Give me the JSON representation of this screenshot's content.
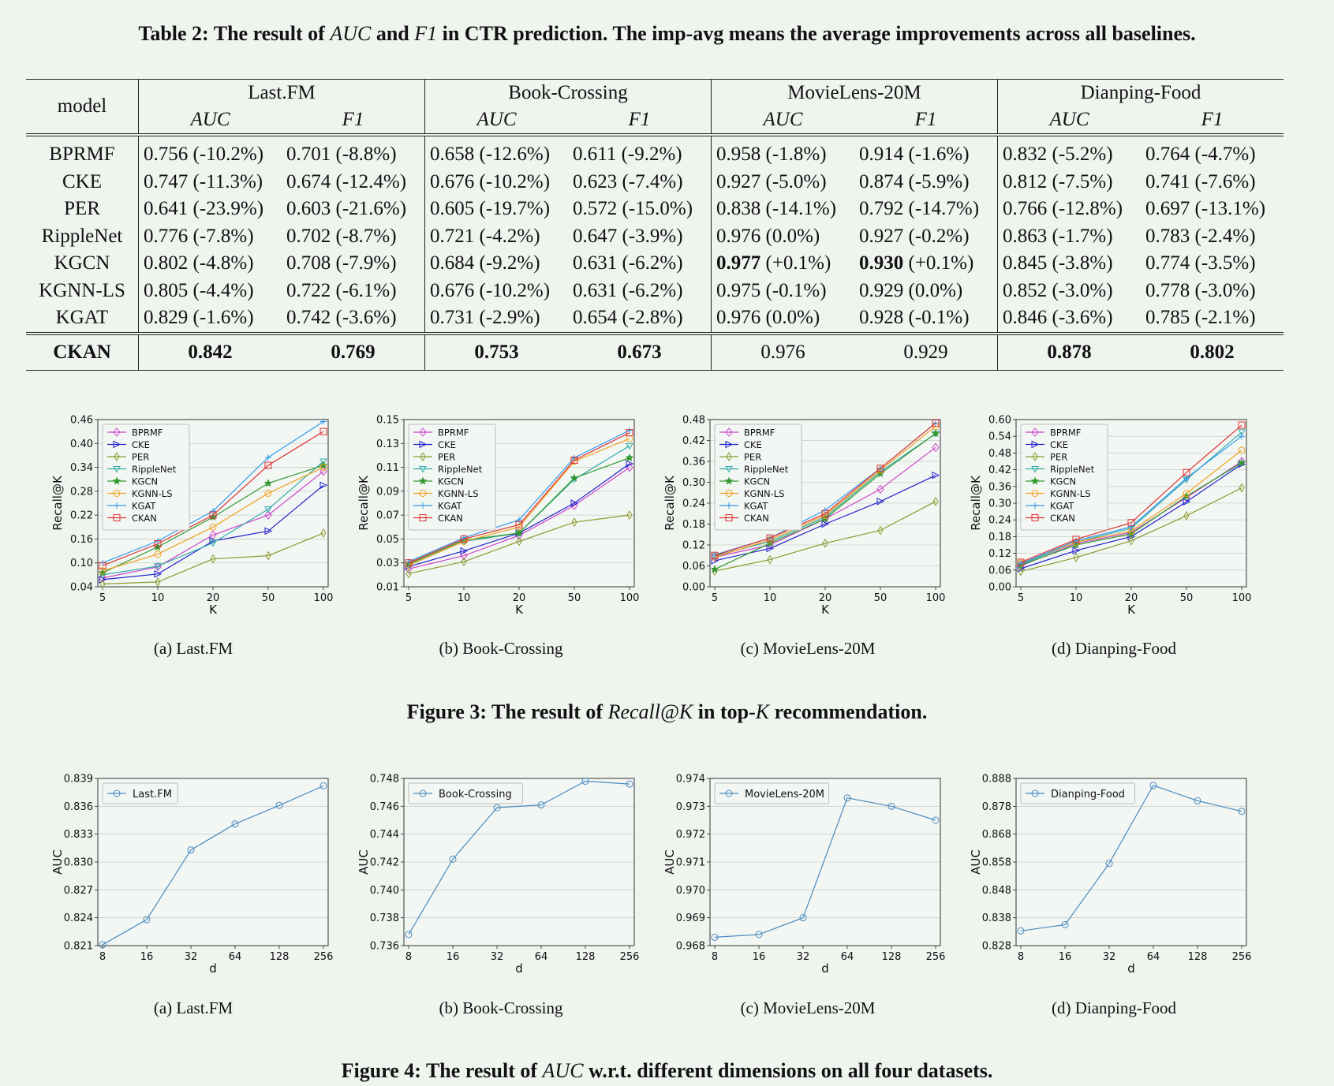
{
  "table2": {
    "caption_label": "Table 2:",
    "caption_p1": " The result of ",
    "caption_auc": "AUC",
    "caption_p2": " and ",
    "caption_f1": "F1",
    "caption_p3": " in CTR prediction. The imp-avg means the average improvements across all baselines.",
    "model_header": "model",
    "datasets": [
      "Last.FM",
      "Book-Crossing",
      "MovieLens-20M",
      "Dianping-Food"
    ],
    "metrics": [
      "AUC",
      "F1"
    ],
    "rows": [
      {
        "model": "BPRMF",
        "cells": [
          [
            "0.756",
            "(-10.2%)"
          ],
          [
            "0.701",
            "(-8.8%)"
          ],
          [
            "0.658",
            "(-12.6%)"
          ],
          [
            "0.611",
            "(-9.2%)"
          ],
          [
            "0.958",
            "(-1.8%)"
          ],
          [
            "0.914",
            "(-1.6%)"
          ],
          [
            "0.832",
            "(-5.2%)"
          ],
          [
            "0.764",
            "(-4.7%)"
          ]
        ]
      },
      {
        "model": "CKE",
        "cells": [
          [
            "0.747",
            "(-11.3%)"
          ],
          [
            "0.674",
            "(-12.4%)"
          ],
          [
            "0.676",
            "(-10.2%)"
          ],
          [
            "0.623",
            "(-7.4%)"
          ],
          [
            "0.927",
            "(-5.0%)"
          ],
          [
            "0.874",
            "(-5.9%)"
          ],
          [
            "0.812",
            "(-7.5%)"
          ],
          [
            "0.741",
            "(-7.6%)"
          ]
        ]
      },
      {
        "model": "PER",
        "cells": [
          [
            "0.641",
            "(-23.9%)"
          ],
          [
            "0.603",
            "(-21.6%)"
          ],
          [
            "0.605",
            "(-19.7%)"
          ],
          [
            "0.572",
            "(-15.0%)"
          ],
          [
            "0.838",
            "(-14.1%)"
          ],
          [
            "0.792",
            "(-14.7%)"
          ],
          [
            "0.766",
            "(-12.8%)"
          ],
          [
            "0.697",
            "(-13.1%)"
          ]
        ]
      },
      {
        "model": "RippleNet",
        "cells": [
          [
            "0.776",
            "(-7.8%)"
          ],
          [
            "0.702",
            "(-8.7%)"
          ],
          [
            "0.721",
            "(-4.2%)"
          ],
          [
            "0.647",
            "(-3.9%)"
          ],
          [
            "0.976",
            "(0.0%)"
          ],
          [
            "0.927",
            "(-0.2%)"
          ],
          [
            "0.863",
            "(-1.7%)"
          ],
          [
            "0.783",
            "(-2.4%)"
          ]
        ]
      },
      {
        "model": "KGCN",
        "cells": [
          [
            "0.802",
            "(-4.8%)"
          ],
          [
            "0.708",
            "(-7.9%)"
          ],
          [
            "0.684",
            "(-9.2%)"
          ],
          [
            "0.631",
            "(-6.2%)"
          ],
          [
            "0.977",
            "(+0.1%)"
          ],
          [
            "0.930",
            "(+0.1%)"
          ],
          [
            "0.845",
            "(-3.8%)"
          ],
          [
            "0.774",
            "(-3.5%)"
          ]
        ]
      },
      {
        "model": "KGNN-LS",
        "cells": [
          [
            "0.805",
            "(-4.4%)"
          ],
          [
            "0.722",
            "(-6.1%)"
          ],
          [
            "0.676",
            "(-10.2%)"
          ],
          [
            "0.631",
            "(-6.2%)"
          ],
          [
            "0.975",
            "(-0.1%)"
          ],
          [
            "0.929",
            "(0.0%)"
          ],
          [
            "0.852",
            "(-3.0%)"
          ],
          [
            "0.778",
            "(-3.0%)"
          ]
        ]
      },
      {
        "model": "KGAT",
        "cells": [
          [
            "0.829",
            "(-1.6%)"
          ],
          [
            "0.742",
            "(-3.6%)"
          ],
          [
            "0.731",
            "(-2.9%)"
          ],
          [
            "0.654",
            "(-2.8%)"
          ],
          [
            "0.976",
            "(0.0%)"
          ],
          [
            "0.928",
            "(-0.1%)"
          ],
          [
            "0.846",
            "(-3.6%)"
          ],
          [
            "0.785",
            "(-2.1%)"
          ]
        ]
      }
    ],
    "ckan": {
      "model": "CKAN",
      "cells": [
        "0.842",
        "0.769",
        "0.753",
        "0.673",
        "0.976",
        "0.929",
        "0.878",
        "0.802"
      ]
    }
  },
  "figure3": {
    "caption_label": "Figure 3:",
    "caption_p1": " The result of ",
    "caption_metric": "Recall@K",
    "caption_p2": " in top-",
    "caption_k": "K",
    "caption_p3": " recommendation.",
    "subcaptions": [
      "(a)  Last.FM",
      "(b)  Book-Crossing",
      "(c)  MovieLens-20M",
      "(d)  Dianping-Food"
    ]
  },
  "figure4": {
    "caption_label": "Figure 4:",
    "caption_p1": " The result of ",
    "caption_metric": "AUC",
    "caption_p2": " w.r.t. different dimensions on all four datasets.",
    "subcaptions": [
      "(a)  Last.FM",
      "(b)  Book-Crossing",
      "(c)  MovieLens-20M",
      "(d)  Dianping-Food"
    ]
  },
  "series_colors": {
    "BPRMF": "#cc44cc",
    "CKE": "#2222cc",
    "PER": "#8a9a30",
    "RippleNet": "#33aaaa",
    "KGCN": "#339933",
    "KGNN-LS": "#f0a020",
    "KGAT": "#3399ee",
    "CKAN": "#dd3333",
    "single": "#4a8ac0"
  },
  "chart_data": [
    {
      "type": "line",
      "xlabel": "K",
      "ylabel": "Recall@K",
      "x": [
        "5",
        "10",
        "20",
        "50",
        "100"
      ],
      "yticks": [
        "0.04",
        "0.10",
        "0.16",
        "0.22",
        "0.28",
        "0.34",
        "0.40",
        "0.46"
      ],
      "ylim": [
        0.04,
        0.46
      ],
      "legend": "top-left",
      "grid": true,
      "series": [
        {
          "name": "BPRMF",
          "values": [
            0.062,
            0.09,
            0.17,
            0.22,
            0.33
          ]
        },
        {
          "name": "CKE",
          "values": [
            0.058,
            0.072,
            0.155,
            0.18,
            0.295
          ]
        },
        {
          "name": "PER",
          "values": [
            0.047,
            0.052,
            0.11,
            0.118,
            0.175
          ]
        },
        {
          "name": "RippleNet",
          "values": [
            0.07,
            0.092,
            0.15,
            0.235,
            0.355
          ]
        },
        {
          "name": "KGCN",
          "values": [
            0.075,
            0.14,
            0.215,
            0.3,
            0.345
          ]
        },
        {
          "name": "KGNN-LS",
          "values": [
            0.08,
            0.122,
            0.19,
            0.275,
            0.34
          ]
        },
        {
          "name": "KGAT",
          "values": [
            0.1,
            0.155,
            0.23,
            0.365,
            0.455
          ]
        },
        {
          "name": "CKAN",
          "values": [
            0.093,
            0.148,
            0.22,
            0.345,
            0.43
          ]
        }
      ]
    },
    {
      "type": "line",
      "xlabel": "K",
      "ylabel": "Recall@K",
      "x": [
        "5",
        "10",
        "20",
        "50",
        "100"
      ],
      "yticks": [
        "0.01",
        "0.03",
        "0.05",
        "0.07",
        "0.09",
        "0.11",
        "0.13",
        "0.15"
      ],
      "ylim": [
        0.01,
        0.15
      ],
      "legend": "top-left",
      "grid": true,
      "series": [
        {
          "name": "BPRMF",
          "values": [
            0.025,
            0.036,
            0.053,
            0.078,
            0.11
          ]
        },
        {
          "name": "CKE",
          "values": [
            0.027,
            0.04,
            0.055,
            0.08,
            0.113
          ]
        },
        {
          "name": "PER",
          "values": [
            0.021,
            0.031,
            0.048,
            0.064,
            0.07
          ]
        },
        {
          "name": "RippleNet",
          "values": [
            0.028,
            0.048,
            0.055,
            0.1,
            0.128
          ]
        },
        {
          "name": "KGCN",
          "values": [
            0.029,
            0.049,
            0.055,
            0.101,
            0.118
          ]
        },
        {
          "name": "KGNN-LS",
          "values": [
            0.028,
            0.048,
            0.06,
            0.115,
            0.134
          ]
        },
        {
          "name": "KGAT",
          "values": [
            0.031,
            0.051,
            0.066,
            0.118,
            0.141
          ]
        },
        {
          "name": "CKAN",
          "values": [
            0.03,
            0.05,
            0.062,
            0.116,
            0.139
          ]
        }
      ]
    },
    {
      "type": "line",
      "xlabel": "K",
      "ylabel": "Recall@K",
      "x": [
        "5",
        "10",
        "20",
        "50",
        "100"
      ],
      "yticks": [
        "0.00",
        "0.06",
        "0.12",
        "0.18",
        "0.24",
        "0.30",
        "0.36",
        "0.42",
        "0.48"
      ],
      "ylim": [
        0.0,
        0.48
      ],
      "legend": "top-left",
      "grid": true,
      "series": [
        {
          "name": "BPRMF",
          "values": [
            0.085,
            0.12,
            0.195,
            0.28,
            0.4
          ]
        },
        {
          "name": "CKE",
          "values": [
            0.075,
            0.11,
            0.18,
            0.245,
            0.32
          ]
        },
        {
          "name": "PER",
          "values": [
            0.045,
            0.078,
            0.125,
            0.162,
            0.245
          ]
        },
        {
          "name": "RippleNet",
          "values": [
            0.088,
            0.13,
            0.2,
            0.33,
            0.44
          ]
        },
        {
          "name": "KGCN",
          "values": [
            0.05,
            0.125,
            0.195,
            0.325,
            0.44
          ]
        },
        {
          "name": "KGNN-LS",
          "values": [
            0.085,
            0.135,
            0.205,
            0.335,
            0.46
          ]
        },
        {
          "name": "KGAT",
          "values": [
            0.092,
            0.14,
            0.22,
            0.34,
            0.47
          ]
        },
        {
          "name": "CKAN",
          "values": [
            0.09,
            0.14,
            0.21,
            0.34,
            0.47
          ]
        }
      ]
    },
    {
      "type": "line",
      "xlabel": "K",
      "ylabel": "Recall@K",
      "x": [
        "5",
        "10",
        "20",
        "50",
        "100"
      ],
      "yticks": [
        "0.00",
        "0.06",
        "0.12",
        "0.18",
        "0.24",
        "0.30",
        "0.36",
        "0.42",
        "0.48",
        "0.54",
        "0.60"
      ],
      "ylim": [
        0.0,
        0.6
      ],
      "legend": "top-left",
      "grid": true,
      "series": [
        {
          "name": "BPRMF",
          "values": [
            0.075,
            0.155,
            0.195,
            0.32,
            0.45
          ]
        },
        {
          "name": "CKE",
          "values": [
            0.065,
            0.13,
            0.18,
            0.305,
            0.44
          ]
        },
        {
          "name": "PER",
          "values": [
            0.055,
            0.105,
            0.165,
            0.255,
            0.355
          ]
        },
        {
          "name": "RippleNet",
          "values": [
            0.08,
            0.16,
            0.21,
            0.385,
            0.555
          ]
        },
        {
          "name": "KGCN",
          "values": [
            0.078,
            0.15,
            0.19,
            0.325,
            0.445
          ]
        },
        {
          "name": "KGNN-LS",
          "values": [
            0.085,
            0.16,
            0.2,
            0.335,
            0.49
          ]
        },
        {
          "name": "KGAT",
          "values": [
            0.083,
            0.165,
            0.215,
            0.39,
            0.54
          ]
        },
        {
          "name": "CKAN",
          "values": [
            0.088,
            0.17,
            0.23,
            0.41,
            0.58
          ]
        }
      ]
    },
    {
      "type": "line",
      "xlabel": "d",
      "ylabel": "AUC",
      "x": [
        "8",
        "16",
        "32",
        "64",
        "128",
        "256"
      ],
      "yticks": [
        "0.821",
        "0.824",
        "0.827",
        "0.830",
        "0.833",
        "0.836",
        "0.839"
      ],
      "ylim": [
        0.821,
        0.839
      ],
      "legend": "top-left",
      "grid": true,
      "series": [
        {
          "name": "Last.FM",
          "values": [
            0.8211,
            0.8238,
            0.8313,
            0.8341,
            0.8361,
            0.8382
          ]
        }
      ]
    },
    {
      "type": "line",
      "xlabel": "d",
      "ylabel": "AUC",
      "x": [
        "8",
        "16",
        "32",
        "64",
        "128",
        "256"
      ],
      "yticks": [
        "0.736",
        "0.738",
        "0.740",
        "0.742",
        "0.744",
        "0.746",
        "0.748"
      ],
      "ylim": [
        0.736,
        0.748
      ],
      "legend": "top-left",
      "grid": true,
      "series": [
        {
          "name": "Book-Crossing",
          "values": [
            0.7368,
            0.7422,
            0.7459,
            0.7461,
            0.7478,
            0.7476
          ]
        }
      ]
    },
    {
      "type": "line",
      "xlabel": "d",
      "ylabel": "AUC",
      "x": [
        "8",
        "16",
        "32",
        "64",
        "128",
        "256"
      ],
      "yticks": [
        "0.968",
        "0.969",
        "0.970",
        "0.971",
        "0.972",
        "0.973",
        "0.974"
      ],
      "ylim": [
        0.968,
        0.974
      ],
      "legend": "top-left",
      "grid": true,
      "series": [
        {
          "name": "MovieLens-20M",
          "values": [
            0.9683,
            0.9684,
            0.969,
            0.9733,
            0.973,
            0.9725
          ]
        }
      ]
    },
    {
      "type": "line",
      "xlabel": "d",
      "ylabel": "AUC",
      "x": [
        "8",
        "16",
        "32",
        "64",
        "128",
        "256"
      ],
      "yticks": [
        "0.828",
        "0.838",
        "0.848",
        "0.858",
        "0.868",
        "0.878",
        "0.888"
      ],
      "ylim": [
        0.828,
        0.888
      ],
      "legend": "top-left",
      "grid": true,
      "series": [
        {
          "name": "Dianping-Food",
          "values": [
            0.8333,
            0.8355,
            0.8575,
            0.8855,
            0.88,
            0.8762
          ]
        }
      ]
    }
  ]
}
